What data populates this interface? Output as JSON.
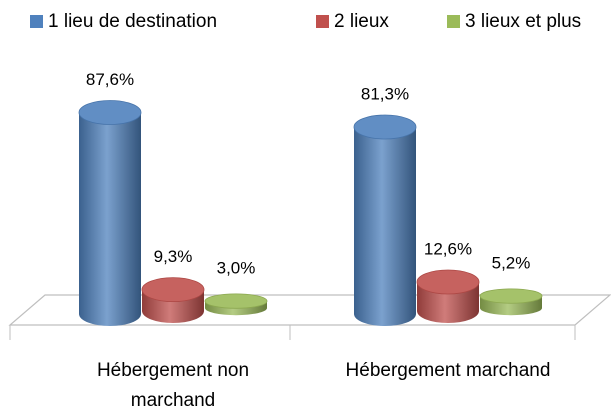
{
  "chart_data": {
    "type": "bar3d",
    "categories": [
      "Hébergement non marchand",
      "Hébergement marchand"
    ],
    "series": [
      {
        "name": "1 lieu de destination",
        "color": "#4f81bd",
        "values": [
          87.6,
          81.3
        ],
        "value_labels": [
          "87,6%",
          "81,3%"
        ]
      },
      {
        "name": "2 lieux",
        "color": "#c0504d",
        "values": [
          9.3,
          12.6
        ],
        "value_labels": [
          "9,3%",
          "12,6%"
        ]
      },
      {
        "name": "3 lieux et plus",
        "color": "#9bbb59",
        "values": [
          3.0,
          5.2
        ],
        "value_labels": [
          "3,0%",
          "5,2%"
        ]
      }
    ],
    "legend": "top"
  }
}
